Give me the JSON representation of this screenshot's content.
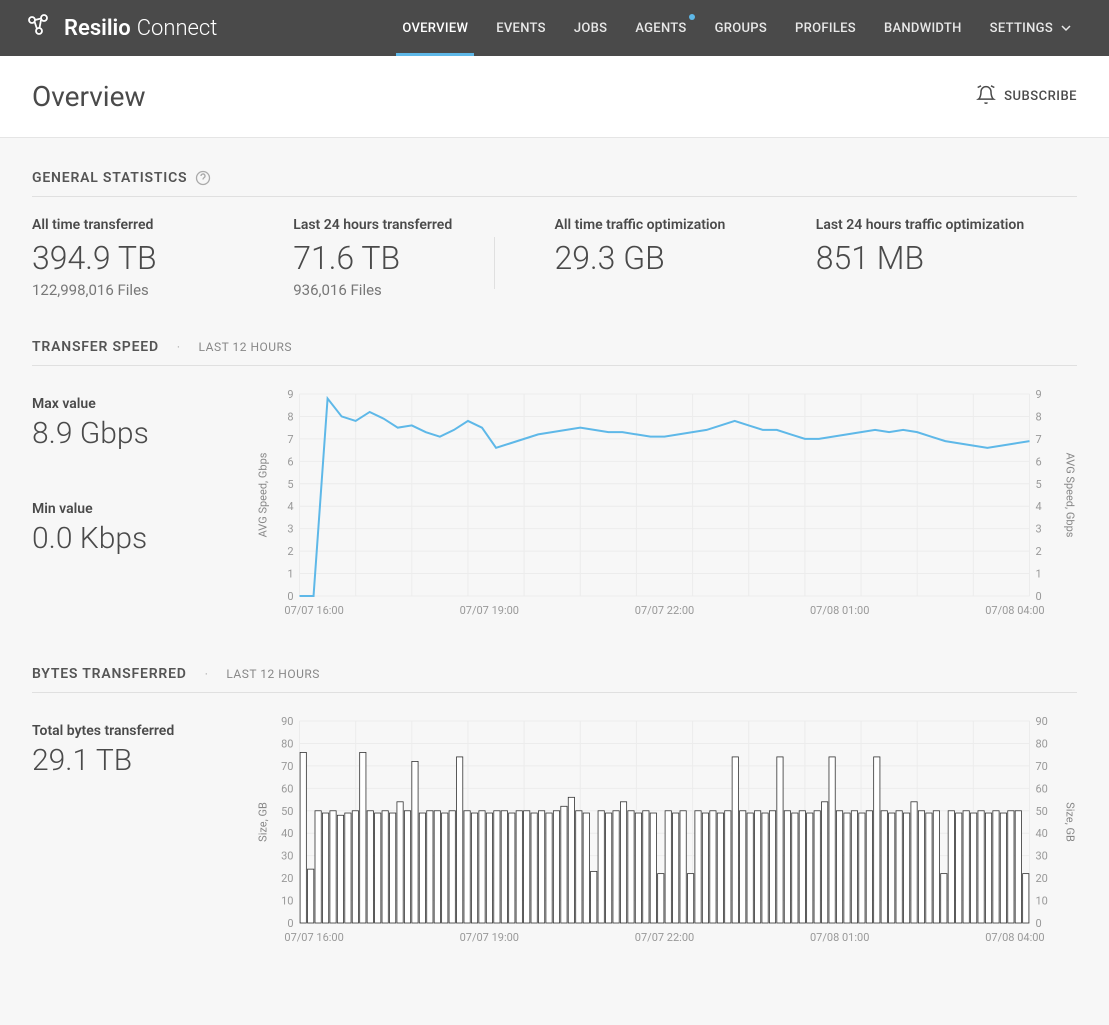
{
  "brand": {
    "bold": "Resilio",
    "light": "Connect"
  },
  "nav": {
    "items": [
      {
        "label": "OVERVIEW",
        "active": true
      },
      {
        "label": "EVENTS"
      },
      {
        "label": "JOBS"
      },
      {
        "label": "AGENTS",
        "dot": true
      },
      {
        "label": "GROUPS"
      },
      {
        "label": "PROFILES"
      },
      {
        "label": "BANDWIDTH"
      },
      {
        "label": "SETTINGS",
        "chevron": true
      }
    ]
  },
  "page": {
    "title": "Overview",
    "subscribe_label": "SUBSCRIBE"
  },
  "general_stats": {
    "title": "GENERAL STATISTICS",
    "blocks": [
      {
        "label": "All time transferred",
        "value": "394.9 TB",
        "detail": "122,998,016 Files"
      },
      {
        "label": "Last 24 hours transferred",
        "value": "71.6 TB",
        "detail": "936,016 Files"
      },
      {
        "label": "All time traffic optimization",
        "value": "29.3 GB",
        "detail": ""
      },
      {
        "label": "Last 24 hours traffic optimization",
        "value": "851 MB",
        "detail": ""
      }
    ]
  },
  "transfer_speed": {
    "title": "TRANSFER SPEED",
    "subtitle": "LAST 12 HOURS",
    "max_label": "Max value",
    "max_value": "8.9 Gbps",
    "min_label": "Min value",
    "min_value": "0.0 Kbps",
    "chart": {
      "type": "line",
      "y_label": "AVG Speed, Gbps",
      "y_label_right": "AVG Speed, Gbps",
      "ylim": [
        0,
        9
      ],
      "ytick_step": 1,
      "x_ticks": [
        "07/07 16:00",
        "07/07 19:00",
        "07/07 22:00",
        "07/08 01:00",
        "07/08 04:00"
      ],
      "line_color": "#5eb8e8",
      "grid_color": "#ececec",
      "background_color": "#ffffff",
      "data": [
        0.0,
        0.0,
        8.8,
        8.0,
        7.8,
        8.2,
        7.9,
        7.5,
        7.6,
        7.3,
        7.1,
        7.4,
        7.8,
        7.5,
        6.6,
        6.8,
        7.0,
        7.2,
        7.3,
        7.4,
        7.5,
        7.4,
        7.3,
        7.3,
        7.2,
        7.1,
        7.1,
        7.2,
        7.3,
        7.4,
        7.6,
        7.8,
        7.6,
        7.4,
        7.4,
        7.2,
        7.0,
        7.0,
        7.1,
        7.2,
        7.3,
        7.4,
        7.3,
        7.4,
        7.3,
        7.1,
        6.9,
        6.8,
        6.7,
        6.6,
        6.7,
        6.8,
        6.9
      ]
    }
  },
  "bytes_transferred": {
    "title": "BYTES TRANSFERRED",
    "subtitle": "LAST 12 HOURS",
    "total_label": "Total bytes transferred",
    "total_value": "29.1 TB",
    "chart": {
      "type": "bar",
      "y_label": "Size, GB",
      "y_label_right": "Size, GB",
      "ylim": [
        0,
        90
      ],
      "ytick_step": 10,
      "x_ticks": [
        "07/07 16:00",
        "07/07 19:00",
        "07/07 22:00",
        "07/08 01:00",
        "07/08 04:00"
      ],
      "bar_stroke": "#333333",
      "bar_fill": "#ffffff",
      "grid_color": "#ececec",
      "background_color": "#ffffff",
      "data": [
        76,
        24,
        50,
        49,
        50,
        48,
        49,
        50,
        76,
        50,
        49,
        50,
        49,
        54,
        50,
        72,
        49,
        50,
        50,
        49,
        50,
        74,
        50,
        49,
        50,
        49,
        50,
        50,
        49,
        50,
        50,
        49,
        50,
        49,
        50,
        52,
        56,
        50,
        49,
        23,
        50,
        49,
        50,
        54,
        50,
        49,
        50,
        49,
        22,
        50,
        49,
        50,
        22,
        50,
        49,
        50,
        49,
        50,
        74,
        50,
        49,
        50,
        49,
        50,
        74,
        50,
        49,
        50,
        49,
        50,
        54,
        74,
        50,
        49,
        50,
        49,
        50,
        74,
        50,
        49,
        50,
        49,
        54,
        50,
        49,
        50,
        22,
        50,
        49,
        50,
        49,
        50,
        49,
        50,
        49,
        50,
        50,
        22
      ]
    }
  }
}
